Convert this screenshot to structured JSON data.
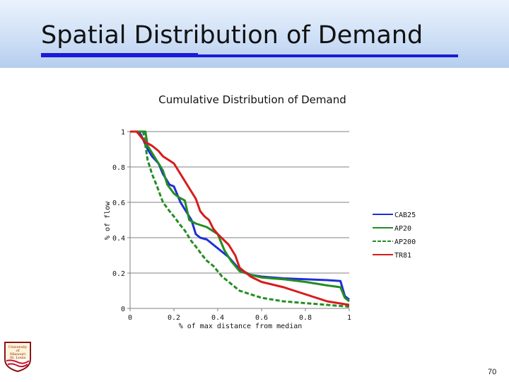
{
  "slide": {
    "title": "Spatial Distribution of Demand",
    "page_number": "70",
    "colors": {
      "title_rule": "#1a1ad8",
      "header_bg": "#cfe0f6"
    }
  },
  "logo": {
    "lines": [
      "University",
      "of",
      "Missouri",
      "St. Louis"
    ],
    "icon": "university-shield-logo"
  },
  "chart_data": {
    "type": "line",
    "title": "Cumulative Distribution of Demand",
    "xlabel": "% of max distance from median",
    "ylabel": "% of flow",
    "xlim": [
      0,
      1
    ],
    "ylim": [
      0,
      1
    ],
    "xticks": [
      "0",
      "0.2",
      "0.4",
      "0.6",
      "0.8",
      "1"
    ],
    "yticks": [
      "0",
      "0.2",
      "0.4",
      "0.6",
      "0.8",
      "1"
    ],
    "grid": "horizontal",
    "legend_position": "right",
    "series": [
      {
        "name": "CAB25",
        "color": "#1f2fd6",
        "dash": "solid",
        "x": [
          0,
          0.04,
          0.05,
          0.08,
          0.1,
          0.13,
          0.15,
          0.18,
          0.2,
          0.23,
          0.25,
          0.28,
          0.3,
          0.32,
          0.35,
          0.38,
          0.4,
          0.45,
          0.5,
          0.55,
          0.6,
          0.7,
          0.8,
          0.9,
          0.96,
          0.98,
          1.0
        ],
        "y": [
          1,
          1,
          0.98,
          0.9,
          0.86,
          0.82,
          0.76,
          0.7,
          0.69,
          0.6,
          0.56,
          0.5,
          0.42,
          0.4,
          0.39,
          0.36,
          0.34,
          0.29,
          0.22,
          0.19,
          0.18,
          0.17,
          0.165,
          0.16,
          0.155,
          0.07,
          0.05
        ]
      },
      {
        "name": "AP20",
        "color": "#238d23",
        "dash": "solid",
        "x": [
          0,
          0.07,
          0.08,
          0.1,
          0.12,
          0.15,
          0.17,
          0.2,
          0.22,
          0.25,
          0.27,
          0.3,
          0.35,
          0.4,
          0.43,
          0.46,
          0.5,
          0.55,
          0.6,
          0.7,
          0.8,
          0.9,
          0.96,
          0.98,
          1.0
        ],
        "y": [
          1,
          1,
          0.92,
          0.88,
          0.84,
          0.78,
          0.7,
          0.65,
          0.63,
          0.61,
          0.5,
          0.48,
          0.46,
          0.42,
          0.33,
          0.27,
          0.21,
          0.19,
          0.175,
          0.165,
          0.15,
          0.13,
          0.12,
          0.06,
          0.04
        ]
      },
      {
        "name": "AP200",
        "color": "#238d23",
        "dash": "dashed",
        "x": [
          0,
          0.06,
          0.07,
          0.08,
          0.1,
          0.12,
          0.15,
          0.18,
          0.2,
          0.23,
          0.25,
          0.28,
          0.3,
          0.33,
          0.35,
          0.38,
          0.4,
          0.42,
          0.45,
          0.5,
          0.55,
          0.6,
          0.7,
          0.8,
          0.9,
          1.0
        ],
        "y": [
          1,
          1,
          0.92,
          0.84,
          0.76,
          0.7,
          0.6,
          0.55,
          0.52,
          0.47,
          0.44,
          0.38,
          0.35,
          0.3,
          0.27,
          0.24,
          0.21,
          0.18,
          0.15,
          0.1,
          0.08,
          0.06,
          0.04,
          0.03,
          0.02,
          0.01
        ]
      },
      {
        "name": "TR81",
        "color": "#d81b1b",
        "dash": "solid",
        "x": [
          0,
          0.03,
          0.05,
          0.07,
          0.1,
          0.13,
          0.15,
          0.2,
          0.22,
          0.25,
          0.28,
          0.3,
          0.32,
          0.34,
          0.36,
          0.38,
          0.4,
          0.45,
          0.48,
          0.5,
          0.55,
          0.6,
          0.7,
          0.8,
          0.9,
          1.0
        ],
        "y": [
          1,
          1,
          0.97,
          0.94,
          0.92,
          0.89,
          0.86,
          0.82,
          0.78,
          0.72,
          0.66,
          0.62,
          0.55,
          0.52,
          0.5,
          0.45,
          0.42,
          0.36,
          0.3,
          0.23,
          0.18,
          0.15,
          0.12,
          0.08,
          0.04,
          0.02
        ]
      }
    ]
  }
}
